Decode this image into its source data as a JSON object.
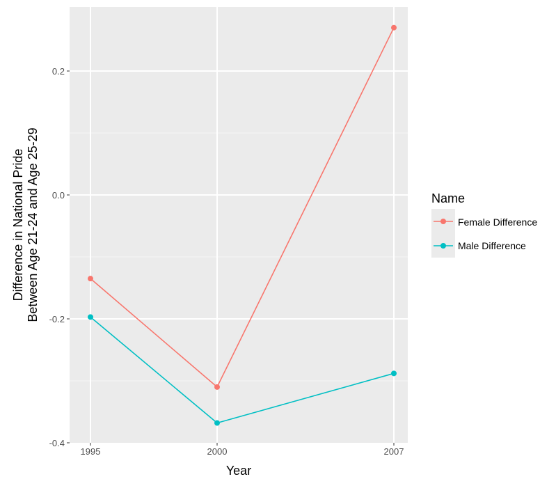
{
  "chart_data": {
    "type": "line",
    "x": [
      "1995",
      "2000",
      "2007"
    ],
    "xlabel": "Year",
    "ylabel_lines": [
      "Difference in National Pride",
      "Between Age 21-24 and Age 25-29"
    ],
    "y_ticks": [
      0.2,
      0.0,
      -0.2,
      -0.4
    ],
    "y_tick_labels": [
      "0.2",
      "0.0",
      "-0.2",
      "-0.4"
    ],
    "ylim": [
      -0.4,
      0.27
    ],
    "grid": true,
    "legend_title": "Name",
    "legend_position": "right",
    "series": [
      {
        "name": "Female Difference",
        "color": "#F8766D",
        "values": [
          -0.135,
          -0.31,
          0.27
        ]
      },
      {
        "name": "Male Difference",
        "color": "#00BFC4",
        "values": [
          -0.197,
          -0.368,
          -0.288
        ]
      }
    ]
  }
}
